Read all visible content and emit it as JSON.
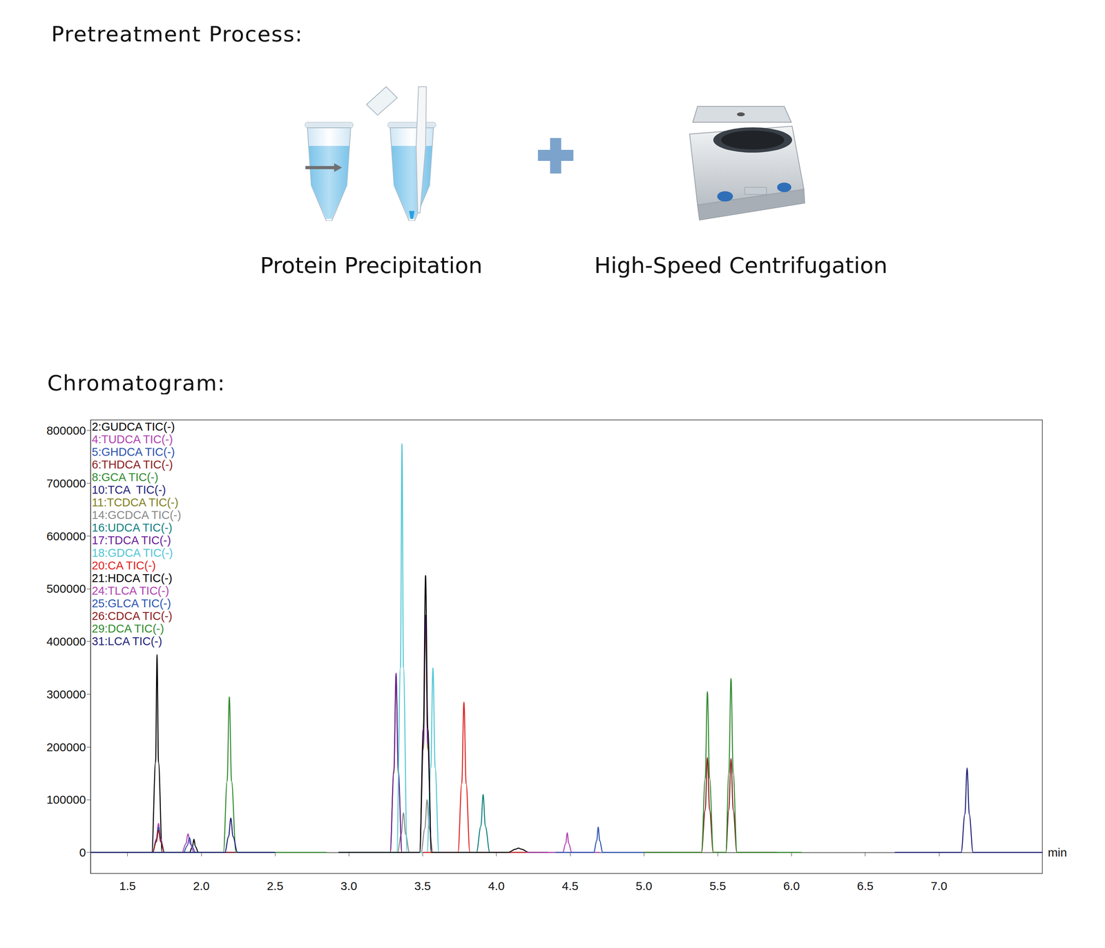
{
  "headings": {
    "pretreatment": "Pretreatment Process:",
    "chromatogram": "Chromatogram:"
  },
  "steps": [
    "Protein Precipitation",
    "High-Speed Centrifugation"
  ],
  "chart_data": {
    "type": "line",
    "x_label": "min",
    "xlim": [
      1.25,
      7.7
    ],
    "xticks": [
      1.5,
      {
        "value": 2,
        "label": "2.0"
      },
      2.5,
      {
        "value": 3,
        "label": "3.0"
      },
      3.5,
      {
        "value": 4,
        "label": "4.0"
      },
      4.5,
      {
        "value": 5,
        "label": "5.0"
      },
      5.5,
      {
        "value": 6,
        "label": "6.0"
      },
      6.5,
      {
        "value": 7,
        "label": "7.0"
      }
    ],
    "ylim": [
      -40000,
      820000
    ],
    "yticks": [
      0,
      100000,
      200000,
      300000,
      400000,
      500000,
      600000,
      700000,
      800000
    ],
    "grid": false,
    "legend": "upper left",
    "series": [
      {
        "name": "2:GUDCA TIC(-)",
        "color": "#000000",
        "x": [
          1.25,
          1.665,
          1.69,
          1.7,
          1.71,
          1.735,
          1.92,
          1.94,
          1.95,
          1.96,
          1.98,
          2.3
        ],
        "values": [
          0,
          0,
          170000,
          375000,
          170000,
          0,
          0,
          11000,
          25000,
          11000,
          0,
          0
        ]
      },
      {
        "name": "4:TUDCA TIC(-)",
        "color": "#b040b0",
        "x": [
          1.25,
          1.67,
          1.695,
          1.71,
          1.725,
          1.75,
          1.87,
          1.895,
          1.91,
          1.925,
          1.95,
          2.3
        ],
        "values": [
          0,
          0,
          25000,
          55000,
          25000,
          0,
          0,
          16000,
          35000,
          16000,
          0,
          0
        ]
      },
      {
        "name": "5:GHDCA TIC(-)",
        "color": "#2a52b0",
        "x": [
          1.25,
          1.67,
          1.695,
          1.71,
          1.725,
          1.75,
          1.88,
          1.905,
          1.92,
          1.935,
          1.96,
          2.5
        ],
        "values": [
          0,
          0,
          22000,
          48000,
          22000,
          0,
          0,
          13000,
          28000,
          13000,
          0,
          0
        ]
      },
      {
        "name": "6:THDCA TIC(-)",
        "color": "#8b1a1a",
        "x": [
          1.25,
          1.67,
          1.695,
          1.71,
          1.725,
          1.75,
          2.3
        ],
        "values": [
          0,
          0,
          20000,
          42000,
          20000,
          0,
          0
        ]
      },
      {
        "name": "8:GCA TIC(-)",
        "color": "#2e8b2e",
        "x": [
          1.25,
          2.15,
          2.175,
          2.19,
          2.205,
          2.235,
          2.85
        ],
        "values": [
          0,
          0,
          135000,
          295000,
          135000,
          0,
          0
        ]
      },
      {
        "name": "10:TCA  TIC(-)",
        "color": "#1f1f7a",
        "x": [
          1.25,
          2.16,
          2.185,
          2.2,
          2.215,
          2.245,
          2.5
        ],
        "values": [
          0,
          0,
          30000,
          65000,
          30000,
          0,
          0
        ]
      },
      {
        "name": "11:TCDCA TIC(-)",
        "color": "#808020",
        "x": [
          2.93,
          3.28,
          3.305,
          3.32,
          3.335,
          3.36,
          3.48,
          3.505,
          3.52,
          3.535,
          3.56,
          3.9
        ],
        "values": [
          0,
          0,
          150000,
          330000,
          150000,
          0,
          0,
          195000,
          430000,
          195000,
          0,
          0
        ]
      },
      {
        "name": "14:GCDCA TIC(-)",
        "color": "#888888",
        "x": [
          2.93,
          3.33,
          3.355,
          3.37,
          3.385,
          3.41,
          3.49,
          3.515,
          3.53,
          3.545,
          3.57,
          3.9
        ],
        "values": [
          0,
          0,
          34000,
          75000,
          34000,
          0,
          0,
          45000,
          100000,
          45000,
          0,
          0
        ]
      },
      {
        "name": "16:UDCA TIC(-)",
        "color": "#108080",
        "x": [
          3.6,
          3.865,
          3.895,
          3.91,
          3.925,
          3.955,
          4.2
        ],
        "values": [
          0,
          0,
          50000,
          110000,
          50000,
          0,
          0
        ]
      },
      {
        "name": "17:TDCA TIC(-)",
        "color": "#6a1b9a",
        "x": [
          2.93,
          3.28,
          3.305,
          3.32,
          3.335,
          3.36,
          3.48,
          3.505,
          3.52,
          3.535,
          3.56,
          3.9
        ],
        "values": [
          0,
          0,
          155000,
          340000,
          155000,
          0,
          0,
          205000,
          450000,
          205000,
          0,
          0
        ]
      },
      {
        "name": "18:GDCA TIC(-)",
        "color": "#4fc6d6",
        "x": [
          2.93,
          3.325,
          3.35,
          3.36,
          3.37,
          3.395,
          3.53,
          3.555,
          3.57,
          3.585,
          3.61,
          3.9
        ],
        "values": [
          0,
          0,
          350000,
          775000,
          350000,
          0,
          0,
          160000,
          350000,
          160000,
          0,
          0
        ]
      },
      {
        "name": "20:CA TIC(-)",
        "color": "#e02020",
        "x": [
          3.5,
          3.74,
          3.765,
          3.78,
          3.795,
          3.82,
          4.3
        ],
        "values": [
          0,
          0,
          130000,
          285000,
          130000,
          0,
          0
        ]
      },
      {
        "name": "21:HDCA TIC(-)",
        "color": "#000000",
        "x": [
          2.93,
          3.48,
          3.505,
          3.52,
          3.535,
          3.56,
          4.08,
          4.13,
          4.15,
          4.17,
          4.22,
          4.35
        ],
        "values": [
          0,
          0,
          235000,
          525000,
          235000,
          0,
          0,
          6000,
          8000,
          6000,
          0,
          0
        ]
      },
      {
        "name": "24:TLCA TIC(-)",
        "color": "#b040b0",
        "x": [
          4.2,
          4.45,
          4.47,
          4.48,
          4.49,
          4.51,
          4.7
        ],
        "values": [
          0,
          0,
          17000,
          37000,
          17000,
          0,
          0
        ]
      },
      {
        "name": "25:GLCA TIC(-)",
        "color": "#2a52b0",
        "x": [
          4.4,
          4.66,
          4.68,
          4.69,
          4.7,
          4.72,
          5.2
        ],
        "values": [
          0,
          0,
          22000,
          48000,
          22000,
          0,
          0
        ]
      },
      {
        "name": "26:CDCA TIC(-)",
        "color": "#8b1a1a",
        "x": [
          5.0,
          5.39,
          5.415,
          5.43,
          5.445,
          5.47,
          5.555,
          5.575,
          5.59,
          5.605,
          5.63,
          5.9
        ],
        "values": [
          0,
          0,
          80000,
          180000,
          80000,
          0,
          0,
          80000,
          178000,
          80000,
          0,
          0
        ]
      },
      {
        "name": "29:DCA TIC(-)",
        "color": "#2e8b2e",
        "x": [
          5.0,
          5.39,
          5.415,
          5.43,
          5.445,
          5.47,
          5.555,
          5.575,
          5.59,
          5.605,
          5.63,
          6.07
        ],
        "values": [
          0,
          0,
          140000,
          305000,
          140000,
          0,
          0,
          150000,
          330000,
          150000,
          0,
          0
        ]
      },
      {
        "name": "31:LCA TIC(-)",
        "color": "#1f1f7a",
        "x": [
          6.7,
          7.15,
          7.175,
          7.19,
          7.205,
          7.23,
          7.7
        ],
        "values": [
          0,
          0,
          72000,
          160000,
          72000,
          0,
          0
        ]
      }
    ]
  }
}
